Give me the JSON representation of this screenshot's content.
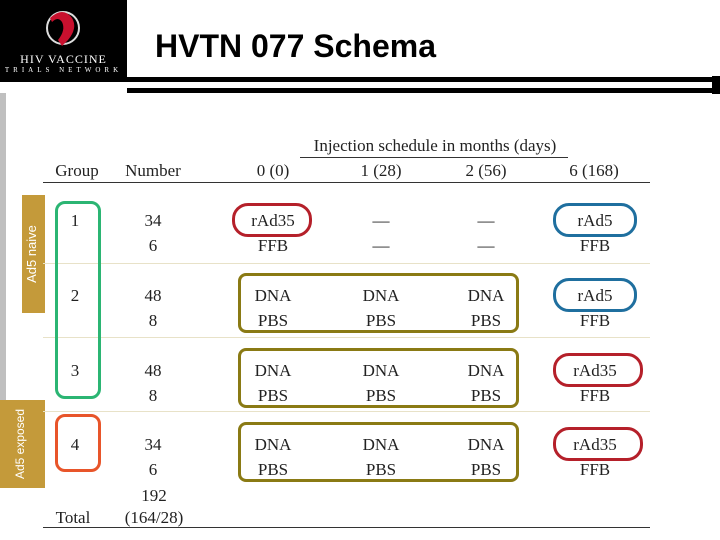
{
  "header": {
    "logo_line1": "HIV VACCINE",
    "logo_line2": "TRIALS NETWORK",
    "title": "HVTN 077 Schema"
  },
  "side_labels": {
    "naive": "Ad5 naive",
    "exposed": "Ad5 exposed"
  },
  "table": {
    "super_header": "Injection schedule in months (days)",
    "columns": [
      "Group",
      "Number",
      "0 (0)",
      "1 (28)",
      "2 (56)",
      "6 (168)"
    ],
    "rows": [
      {
        "group": "1",
        "number": [
          "34",
          "6"
        ],
        "m0": [
          "rAd35",
          "FFB"
        ],
        "m1": [
          "—",
          "—"
        ],
        "m2": [
          "—",
          "—"
        ],
        "m6": [
          "rAd5",
          "FFB"
        ]
      },
      {
        "group": "2",
        "number": [
          "48",
          "8"
        ],
        "m0": [
          "DNA",
          "PBS"
        ],
        "m1": [
          "DNA",
          "PBS"
        ],
        "m2": [
          "DNA",
          "PBS"
        ],
        "m6": [
          "rAd5",
          "FFB"
        ]
      },
      {
        "group": "3",
        "number": [
          "48",
          "8"
        ],
        "m0": [
          "DNA",
          "PBS"
        ],
        "m1": [
          "DNA",
          "PBS"
        ],
        "m2": [
          "DNA",
          "PBS"
        ],
        "m6": [
          "rAd35",
          "FFB"
        ]
      },
      {
        "group": "4",
        "number": [
          "34",
          "6"
        ],
        "m0": [
          "DNA",
          "PBS"
        ],
        "m1": [
          "DNA",
          "PBS"
        ],
        "m2": [
          "DNA",
          "PBS"
        ],
        "m6": [
          "rAd35",
          "FFB"
        ]
      }
    ],
    "total": {
      "label": "Total",
      "number": [
        "192",
        "(164/28)"
      ]
    }
  },
  "colors": {
    "red": "#b5202a",
    "blue": "#1f6f9f",
    "olive": "#8a7a14",
    "green": "#2bb573",
    "orange": "#e8552a",
    "gold": "#c49a3a"
  }
}
